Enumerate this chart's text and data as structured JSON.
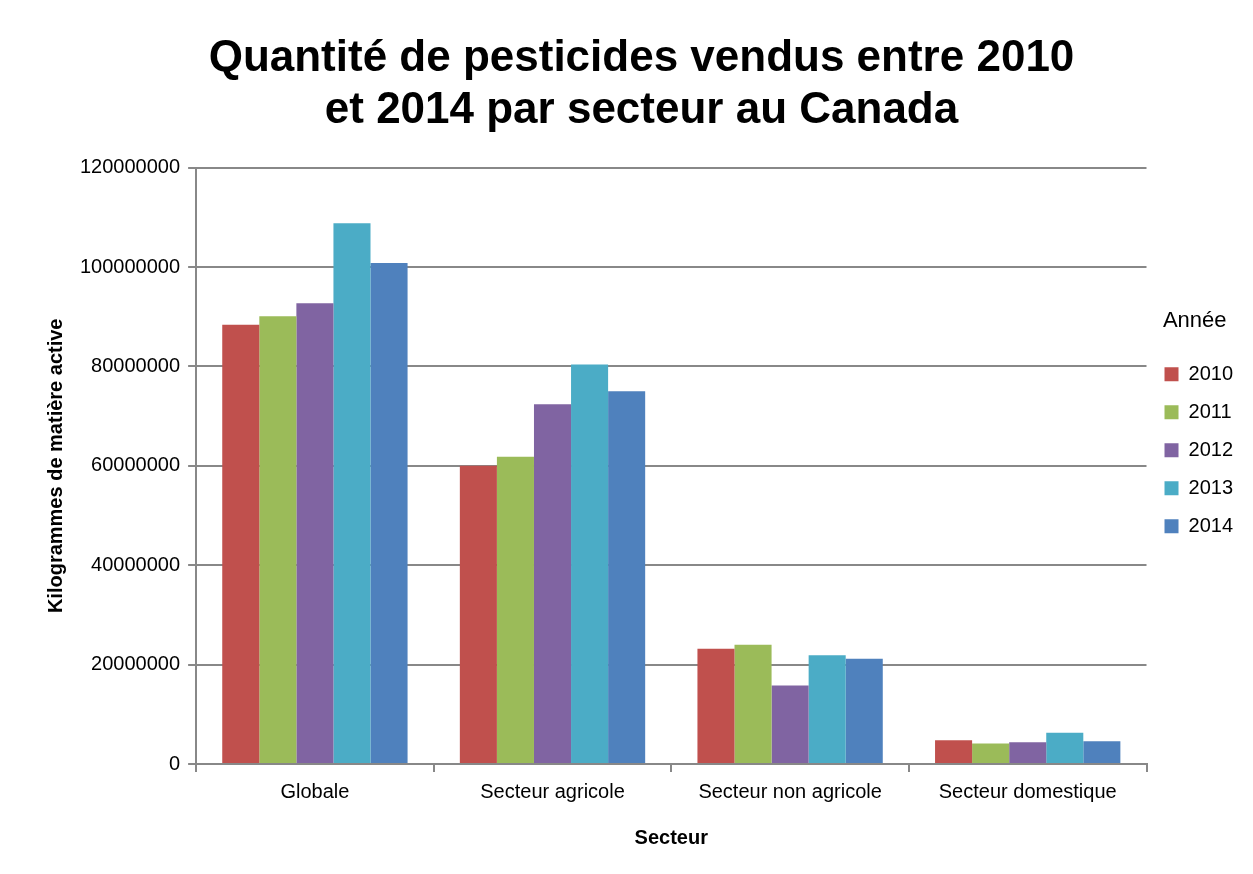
{
  "chart_data": {
    "type": "bar",
    "title": "Quantité de pesticides vendus entre 2010 et 2014 par secteur au Canada",
    "xlabel": "Secteur",
    "ylabel": "Kilogrammes de matière active",
    "legend_title": "Année",
    "categories": [
      "Globale",
      "Secteur agricole",
      "Secteur non agricole",
      "Secteur domestique"
    ],
    "series": [
      {
        "name": "2010",
        "color": "#c0504d",
        "values": [
          88400000,
          60000000,
          23200000,
          4800000
        ]
      },
      {
        "name": "2011",
        "color": "#9bbb59",
        "values": [
          90100000,
          61800000,
          24000000,
          4100000
        ]
      },
      {
        "name": "2012",
        "color": "#8064a2",
        "values": [
          92700000,
          72400000,
          15800000,
          4400000
        ]
      },
      {
        "name": "2013",
        "color": "#4bacc6",
        "values": [
          108800000,
          80400000,
          21900000,
          6300000
        ]
      },
      {
        "name": "2014",
        "color": "#4f81bd",
        "values": [
          100800000,
          75000000,
          21200000,
          4600000
        ]
      }
    ],
    "ylim": [
      0,
      120000000
    ],
    "yticks": [
      0,
      20000000,
      40000000,
      60000000,
      80000000,
      100000000,
      120000000
    ],
    "grid": "y",
    "legend": "right"
  }
}
